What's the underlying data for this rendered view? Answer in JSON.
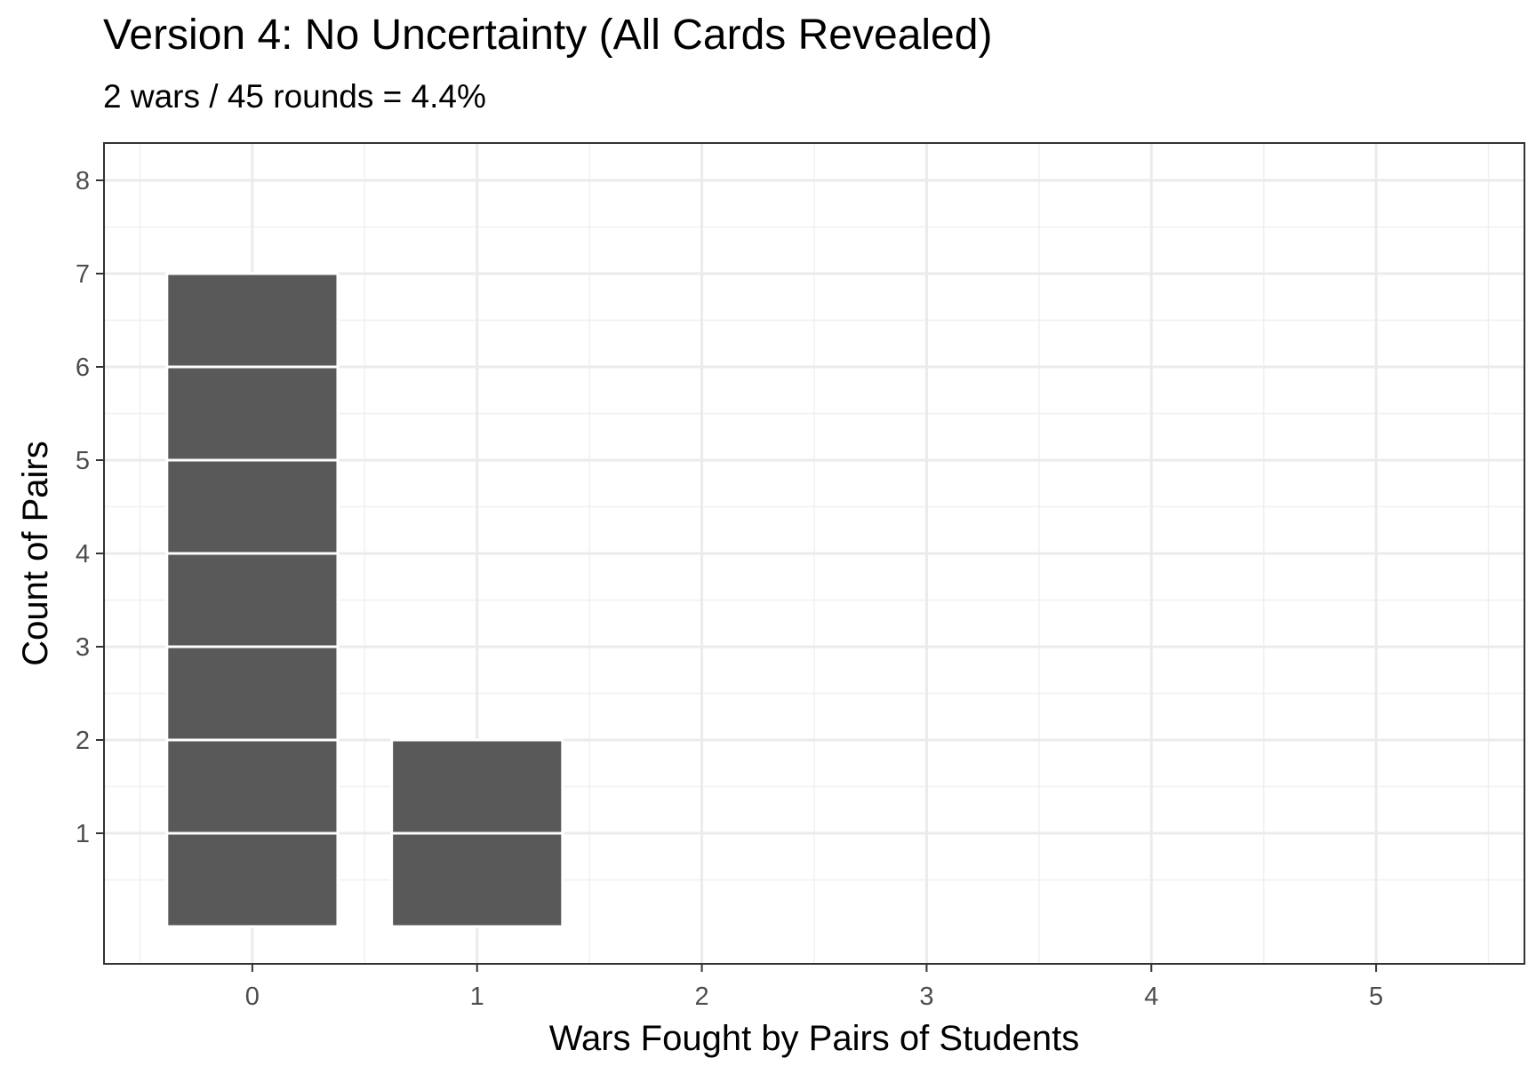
{
  "chart_data": {
    "type": "bar",
    "title": "Version 4: No Uncertainty (All Cards Revealed)",
    "subtitle": "2 wars / 45 rounds = 4.4%",
    "xlabel": "Wars Fought by Pairs of Students",
    "ylabel": "Count of Pairs",
    "categories": [
      0,
      1,
      2,
      3,
      4,
      5
    ],
    "values": [
      7,
      2,
      0,
      0,
      0,
      0
    ],
    "xlim": [
      -0.66,
      5.66
    ],
    "ylim": [
      -0.4,
      8.4
    ],
    "xticks": [
      "0",
      "1",
      "2",
      "3",
      "4",
      "5"
    ],
    "yticks": [
      "1",
      "2",
      "3",
      "4",
      "5",
      "6",
      "7",
      "8"
    ],
    "bar_style": "stacked unit segments with white separators",
    "bar_color": "#595959",
    "grid": true,
    "theme": "bw"
  }
}
